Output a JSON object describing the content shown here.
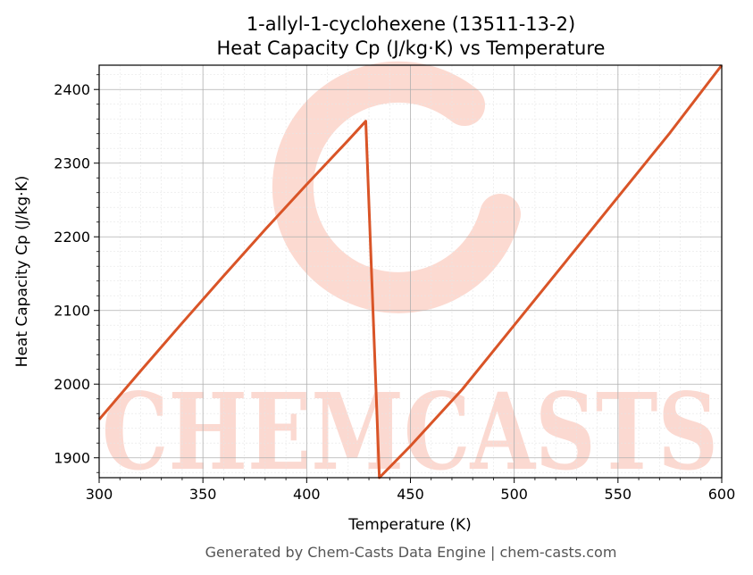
{
  "chart_data": {
    "type": "line",
    "title_line1": "1-allyl-1-cyclohexene (13511-13-2)",
    "title_line2": "Heat Capacity Cp (J/kg·K) vs Temperature",
    "xlabel": "Temperature (K)",
    "ylabel": "Heat Capacity Cp (J/kg·K)",
    "xlim": [
      300,
      600
    ],
    "ylim": [
      1873,
      2433
    ],
    "x_ticks": [
      300,
      350,
      400,
      450,
      500,
      550,
      600
    ],
    "y_ticks": [
      1900,
      2000,
      2100,
      2200,
      2300,
      2400
    ],
    "grid": true,
    "series": [
      {
        "color": "#d95427",
        "points": [
          [
            300,
            1952
          ],
          [
            320,
            2018
          ],
          [
            340,
            2083
          ],
          [
            360,
            2147
          ],
          [
            380,
            2210
          ],
          [
            400,
            2271
          ],
          [
            420,
            2331
          ],
          [
            428.5,
            2357
          ],
          [
            435,
            1873
          ],
          [
            450,
            1916
          ],
          [
            475,
            1993
          ],
          [
            500,
            2080
          ],
          [
            525,
            2167
          ],
          [
            550,
            2254
          ],
          [
            575,
            2341
          ],
          [
            600,
            2433
          ]
        ]
      }
    ]
  },
  "watermark": "CHEMCASTS",
  "footer": "Generated by Chem-Casts Data Engine | chem-casts.com",
  "colors": {
    "line": "#d95427",
    "watermark": "#fbd3c9",
    "grid_major": "#b0b0b0",
    "grid_minor": "#e6e6e6"
  }
}
